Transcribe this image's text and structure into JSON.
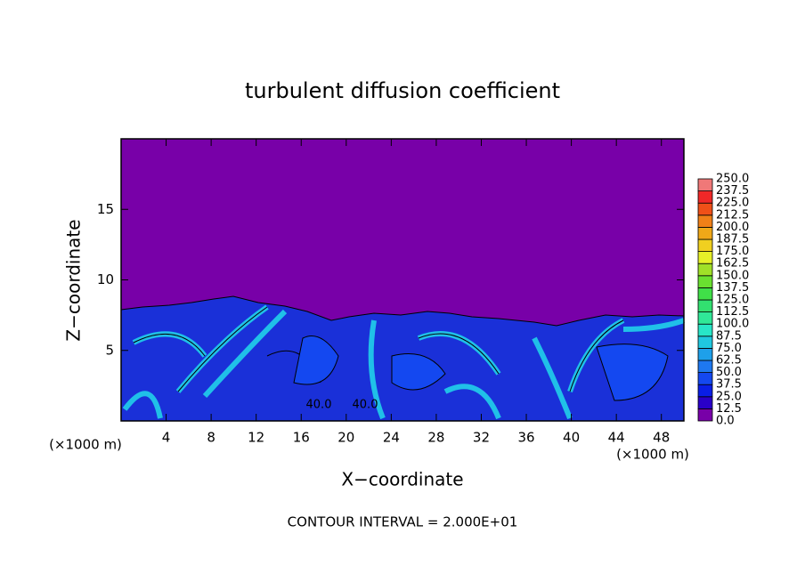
{
  "chart_data": {
    "type": "contour",
    "title": "turbulent diffusion coefficient",
    "x_label": "X−coordinate",
    "y_label": "Z−coordinate",
    "x_unit_left": "(×1000 m)",
    "x_unit_right": "(×1000 m)",
    "annotation": "CONTOUR INTERVAL = 2.000E+01",
    "xlim": [
      0,
      50
    ],
    "ylim": [
      0,
      20
    ],
    "xticks": [
      4,
      8,
      12,
      16,
      20,
      24,
      28,
      32,
      36,
      40,
      44,
      48
    ],
    "yticks": [
      5,
      10,
      15
    ],
    "contour_labels": [
      "40.0",
      "40.0"
    ],
    "colorbar_levels": [
      {
        "value": 0,
        "label": "0.0"
      },
      {
        "value": 12.5,
        "label": "12.5"
      },
      {
        "value": 25,
        "label": "25.0"
      },
      {
        "value": 37.5,
        "label": "37.5"
      },
      {
        "value": 50,
        "label": "50.0"
      },
      {
        "value": 62.5,
        "label": "62.5"
      },
      {
        "value": 75,
        "label": "75.0"
      },
      {
        "value": 87.5,
        "label": "87.5"
      },
      {
        "value": 100,
        "label": "100.0"
      },
      {
        "value": 112.5,
        "label": "112.5"
      },
      {
        "value": 125,
        "label": "125.0"
      },
      {
        "value": 137.5,
        "label": "137.5"
      },
      {
        "value": 150,
        "label": "150.0"
      },
      {
        "value": 162.5,
        "label": "162.5"
      },
      {
        "value": 175,
        "label": "175.0"
      },
      {
        "value": 187.5,
        "label": "187.5"
      },
      {
        "value": 200,
        "label": "200.0"
      },
      {
        "value": 212.5,
        "label": "212.5"
      },
      {
        "value": 225,
        "label": "225.0"
      },
      {
        "value": 237.5,
        "label": "237.5"
      },
      {
        "value": 250,
        "label": "250.0"
      }
    ],
    "colorbar_colors": [
      "#7800a8",
      "#2a00c8",
      "#0a1ee6",
      "#1448f0",
      "#1e78f0",
      "#1ea0ea",
      "#20c8e0",
      "#28e6c8",
      "#30e898",
      "#32e070",
      "#40e048",
      "#6ae030",
      "#a0e028",
      "#e6f028",
      "#f0d020",
      "#f0a818",
      "#f08018",
      "#f05018",
      "#f02828",
      "#f07878"
    ]
  }
}
